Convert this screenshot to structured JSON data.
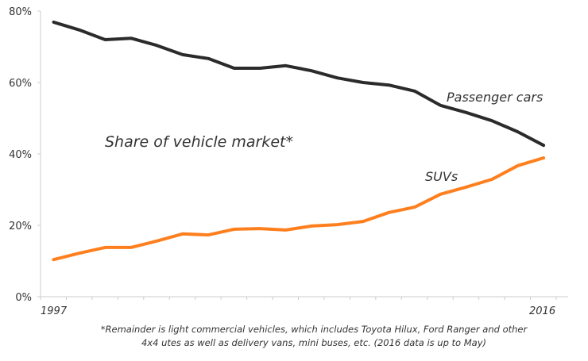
{
  "chart_data": {
    "type": "line",
    "title": "Share of vehicle market*",
    "x": [
      1997,
      1998,
      1999,
      2000,
      2001,
      2002,
      2003,
      2004,
      2005,
      2006,
      2007,
      2008,
      2009,
      2010,
      2011,
      2012,
      2013,
      2014,
      2015,
      2016
    ],
    "x_tick_labels": [
      "1997",
      "2016"
    ],
    "y_tick_labels": [
      "0%",
      "20%",
      "40%",
      "60%",
      "80%"
    ],
    "ylim": [
      0,
      80
    ],
    "grid": false,
    "series": [
      {
        "name": "Passenger cars",
        "color": "#2b2b2b",
        "values": [
          76.9,
          74.7,
          72.0,
          72.4,
          70.4,
          67.8,
          66.7,
          64.0,
          64.0,
          64.7,
          63.3,
          61.3,
          60.0,
          59.3,
          57.6,
          53.6,
          51.6,
          49.3,
          46.2,
          42.4
        ]
      },
      {
        "name": "SUVs",
        "color": "#ff7f1e",
        "values": [
          10.4,
          12.2,
          13.8,
          13.8,
          15.6,
          17.6,
          17.3,
          18.9,
          19.1,
          18.7,
          19.8,
          20.2,
          21.1,
          23.6,
          25.1,
          28.7,
          30.7,
          32.9,
          36.7,
          38.9
        ]
      }
    ],
    "footnote_lines": [
      "*Remainder is light commercial vehicles, which includes Toyota Hilux, Ford Ranger and other",
      "4x4 utes as well as delivery vans, mini buses, etc.   (2016 data is up to May)"
    ]
  }
}
